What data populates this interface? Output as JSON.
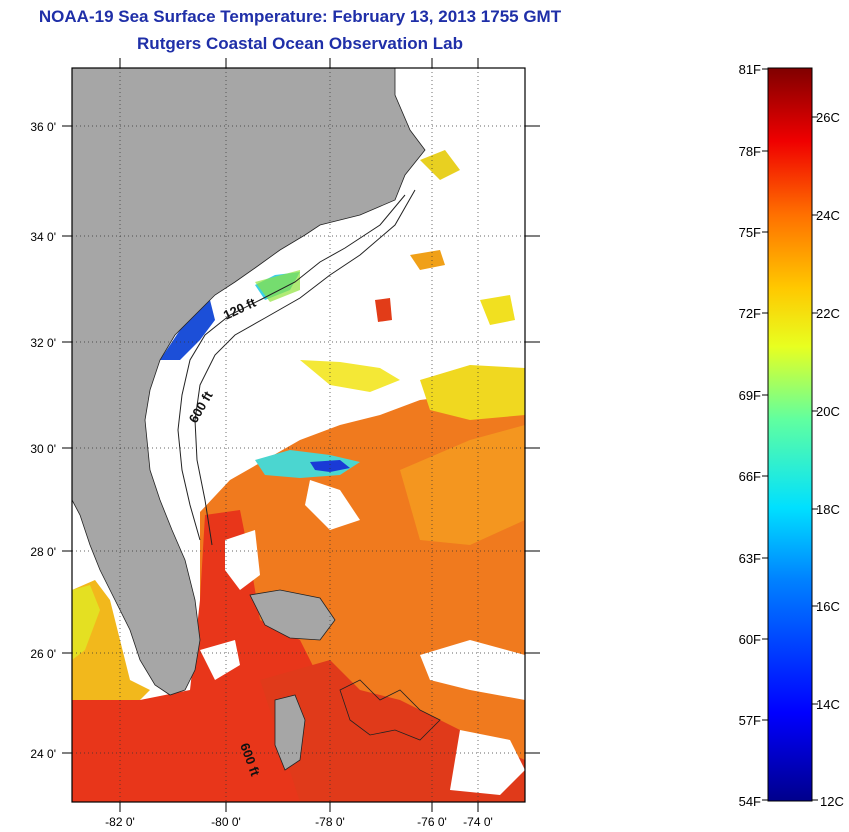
{
  "title": "NOAA-19 Sea Surface Temperature:  February 13, 2013 1755 GMT",
  "subtitle": "Rutgers Coastal Ocean Observation Lab",
  "map": {
    "lat_labels": [
      "36 0'",
      "34 0'",
      "32 0'",
      "30 0'",
      "28 0'",
      "26 0'",
      "24 0'"
    ],
    "lon_labels": [
      "-82 0'",
      "-80 0'",
      "-78 0'",
      "-76 0'",
      "-74 0'"
    ],
    "contour_labels": {
      "shelf_120": "120 ft",
      "shelf_600_north": "600 ft",
      "shelf_600_south": "600 ft"
    },
    "colors": {
      "land": "#a6a6a6",
      "cloud": "#ffffff",
      "gulfstream": "#e8361a",
      "warm_water": "#f07a1e",
      "cold_shelf": "#1c4fd8"
    }
  },
  "colorbar": {
    "f_labels": [
      "81F",
      "78F",
      "75F",
      "72F",
      "69F",
      "66F",
      "63F",
      "60F",
      "57F",
      "54F"
    ],
    "c_labels": [
      "26C",
      "24C",
      "22C",
      "20C",
      "18C",
      "16C",
      "14C",
      "12C"
    ],
    "range_f": [
      54,
      81
    ],
    "range_c": [
      12,
      27
    ]
  }
}
